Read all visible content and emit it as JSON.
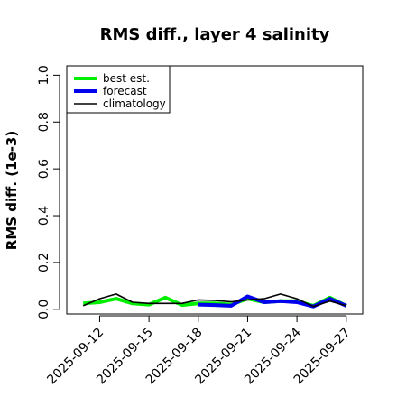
{
  "chart_data": {
    "type": "line",
    "title": "RMS diff., layer 4 salinity",
    "xlabel": "",
    "ylabel": "RMS diff. (1e-3)",
    "ylim": [
      -0.02,
      1.04
    ],
    "xlim": [
      "2025-09-10",
      "2025-09-28"
    ],
    "yticks": [
      "0.0",
      "0.2",
      "0.4",
      "0.6",
      "0.8",
      "1.0"
    ],
    "xticks": [
      {
        "label": "2025-09-12",
        "date": "2025-09-12",
        "color": "#000000"
      },
      {
        "label": "2025-09-15",
        "date": "2025-09-15",
        "color": "#000000"
      },
      {
        "label": "2025-09-18",
        "date": "2025-09-18",
        "color": "#228B22"
      },
      {
        "label": "2025-09-21",
        "date": "2025-09-21",
        "color": "#000000"
      },
      {
        "label": "2025-09-24",
        "date": "2025-09-24",
        "color": "#000000"
      },
      {
        "label": "2025-09-27",
        "date": "2025-09-27",
        "color": "#000000"
      }
    ],
    "legend_position": "top-left",
    "series": [
      {
        "name": "best est.",
        "color": "#00ee00",
        "width": 4,
        "x": [
          "2025-09-11",
          "2025-09-12",
          "2025-09-13",
          "2025-09-14",
          "2025-09-15",
          "2025-09-16",
          "2025-09-17",
          "2025-09-18",
          "2025-09-19",
          "2025-09-20",
          "2025-09-21",
          "2025-09-22",
          "2025-09-23",
          "2025-09-24",
          "2025-09-25",
          "2025-09-26",
          "2025-09-27"
        ],
        "y": [
          0.025,
          0.03,
          0.045,
          0.025,
          0.02,
          0.05,
          0.018,
          0.025,
          0.025,
          0.02,
          0.045,
          0.03,
          0.035,
          0.035,
          0.015,
          0.05,
          0.015
        ]
      },
      {
        "name": "forecast",
        "color": "#0000ee",
        "width": 4,
        "x": [
          "2025-09-18",
          "2025-09-19",
          "2025-09-20",
          "2025-09-21",
          "2025-09-22",
          "2025-09-23",
          "2025-09-24",
          "2025-09-25",
          "2025-09-26",
          "2025-09-27"
        ],
        "y": [
          0.02,
          0.018,
          0.015,
          0.055,
          0.03,
          0.035,
          0.03,
          0.012,
          0.045,
          0.015
        ]
      },
      {
        "name": "climatology",
        "color": "#000000",
        "width": 1.6,
        "x": [
          "2025-09-11",
          "2025-09-12",
          "2025-09-13",
          "2025-09-14",
          "2025-09-15",
          "2025-09-16",
          "2025-09-17",
          "2025-09-18",
          "2025-09-19",
          "2025-09-20",
          "2025-09-21",
          "2025-09-22",
          "2025-09-23",
          "2025-09-24",
          "2025-09-25",
          "2025-09-26",
          "2025-09-27"
        ],
        "y": [
          0.015,
          0.045,
          0.065,
          0.03,
          0.025,
          0.025,
          0.025,
          0.04,
          0.038,
          0.032,
          0.04,
          0.045,
          0.065,
          0.045,
          0.012,
          0.035,
          0.015
        ]
      }
    ]
  }
}
